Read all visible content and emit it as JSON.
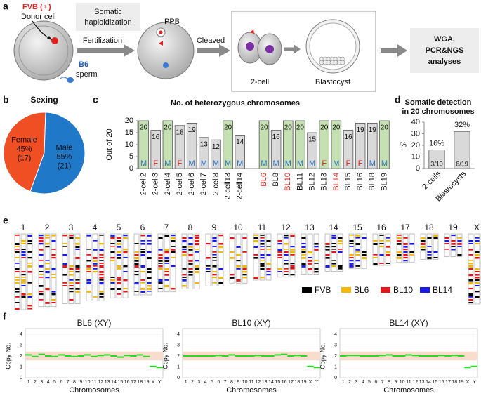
{
  "panel_labels": [
    "a",
    "b",
    "c",
    "d",
    "e",
    "f"
  ],
  "diagram": {
    "donor": "FVB (♀)",
    "donor_cell": "Donor cell",
    "method": [
      "Somatic",
      "haploidization"
    ],
    "fertilization": "Fertilization",
    "sperm_strain": "B6",
    "sperm": "sperm",
    "ppb": "PPB",
    "cleaved": "Cleaved",
    "two_cell": "2-cell",
    "blastocyst": "Blastocyst",
    "analyses": [
      "WGA,",
      "PCR&NGS",
      "analyses"
    ]
  },
  "chart_data": [
    {
      "type": "pie",
      "title": "Sexing",
      "categories": [
        "Female",
        "Male"
      ],
      "values": [
        45,
        55
      ],
      "value_labels": [
        "45%",
        "55%"
      ],
      "counts": [
        "(17)",
        "(21)"
      ],
      "colors": [
        "#f04e23",
        "#1f78c8"
      ]
    },
    {
      "type": "bar",
      "title": "No. of heterozygous chromosomes",
      "ylabel": "Out of 20",
      "categories": [
        "2-cell2",
        "2-cell3",
        "2-cell4",
        "2-cell5",
        "2-cell6",
        "2-cell7",
        "2-cell8",
        "2-cell13",
        "2-cell14",
        null,
        "BL6",
        "BL8",
        "BL10",
        "BL11",
        "BL12",
        "BL13",
        "BL14",
        "BL15",
        "BL16",
        "BL18",
        "BL19"
      ],
      "values": [
        20,
        16,
        20,
        18,
        19,
        13,
        12,
        20,
        14,
        null,
        20,
        16,
        20,
        20,
        15,
        20,
        20,
        16,
        19,
        19,
        20
      ],
      "colors": [
        "#c5e0b3",
        "#d9d9d9",
        "#c5e0b3",
        "#d9d9d9",
        "#d9d9d9",
        "#d9d9d9",
        "#d9d9d9",
        "#c5e0b3",
        "#d9d9d9",
        null,
        "#c5e0b3",
        "#d9d9d9",
        "#c5e0b3",
        "#c5e0b3",
        "#d9d9d9",
        "#c5e0b3",
        "#c5e0b3",
        "#d9d9d9",
        "#d9d9d9",
        "#d9d9d9",
        "#c5e0b3"
      ],
      "label_colors": [
        "#111",
        "#111",
        "#111",
        "#111",
        "#111",
        "#111",
        "#111",
        "#111",
        "#111",
        null,
        "#e0201b",
        "#111",
        "#e0201b",
        "#111",
        "#111",
        "#111",
        "#e0201b",
        "#111",
        "#111",
        "#111",
        "#111"
      ],
      "sex": [
        "M",
        "F",
        "M",
        "F",
        "M",
        "M",
        "M",
        "M",
        "M",
        null,
        "M",
        "M",
        "M",
        "M",
        "M",
        "F",
        "M",
        "F",
        "F",
        "M",
        "M"
      ],
      "sex_colors": {
        "M": "#2f6fbf",
        "F": "#e0201b"
      },
      "ylim": [
        0,
        20
      ],
      "yticks": [
        0,
        5,
        10,
        15,
        20
      ]
    },
    {
      "type": "bar",
      "title": [
        "Somatic detection",
        "in 20 chromosomes"
      ],
      "ylabel": "%",
      "categories": [
        "2-cells",
        "Blastocysts"
      ],
      "values": [
        16,
        32
      ],
      "value_labels": [
        "16%",
        "32%"
      ],
      "inner_labels": [
        "3/19",
        "6/19"
      ],
      "color": "#d9d9d9",
      "ylim": [
        0,
        40
      ],
      "yticks": [
        0,
        10,
        20,
        30,
        40
      ]
    },
    {
      "type": "step",
      "title": "BL6 (XY)",
      "ylabel": "Copy No.",
      "xlabel": "Chromosomes",
      "categories": [
        "1",
        "2",
        "3",
        "4",
        "5",
        "6",
        "7",
        "8",
        "9",
        "10",
        "11",
        "12",
        "13",
        "14",
        "15",
        "16",
        "17",
        "18",
        "19",
        "X",
        "Y"
      ],
      "values": [
        2.1,
        1.95,
        2.15,
        2.0,
        1.95,
        2.1,
        2.0,
        1.95,
        2.0,
        2.1,
        1.95,
        2.05,
        2.1,
        2.0,
        1.9,
        2.05,
        2.0,
        2.1,
        1.95,
        1.05,
        0.95
      ],
      "band": [
        1.6,
        2.4
      ],
      "color": "#22dd22",
      "ylim": [
        0,
        4
      ],
      "yticks": [
        0,
        1,
        2,
        3,
        4
      ]
    },
    {
      "type": "step",
      "title": "BL10 (XY)",
      "ylabel": "Copy No.",
      "xlabel": "Chromosomes",
      "categories": [
        "1",
        "2",
        "3",
        "4",
        "5",
        "6",
        "7",
        "8",
        "9",
        "10",
        "11",
        "12",
        "13",
        "14",
        "15",
        "16",
        "17",
        "18",
        "19",
        "X",
        "Y"
      ],
      "values": [
        2.0,
        2.0,
        2.0,
        2.0,
        2.0,
        2.05,
        2.0,
        2.1,
        2.0,
        2.0,
        2.0,
        2.05,
        2.0,
        2.0,
        2.1,
        2.15,
        2.0,
        2.05,
        2.0,
        1.05,
        0.95
      ],
      "band": [
        1.6,
        2.4
      ],
      "color": "#22dd22",
      "ylim": [
        0,
        4
      ],
      "yticks": [
        0,
        1,
        2,
        3,
        4
      ]
    },
    {
      "type": "step",
      "title": "BL14 (XY)",
      "ylabel": "Copy No.",
      "xlabel": "Chromosomes",
      "categories": [
        "1",
        "2",
        "3",
        "4",
        "5",
        "6",
        "7",
        "8",
        "9",
        "10",
        "11",
        "12",
        "13",
        "14",
        "15",
        "16",
        "17",
        "18",
        "19",
        "X",
        "Y"
      ],
      "values": [
        2.0,
        2.05,
        2.05,
        2.0,
        2.0,
        2.0,
        2.05,
        2.1,
        2.0,
        2.0,
        2.1,
        2.05,
        2.0,
        2.0,
        2.0,
        2.05,
        2.0,
        2.05,
        2.0,
        0.95,
        1.05
      ],
      "band": [
        1.6,
        2.4
      ],
      "color": "#22dd22",
      "ylim": [
        0,
        4
      ],
      "yticks": [
        0,
        1,
        2,
        3,
        4
      ]
    }
  ],
  "karyotype": {
    "chromosomes": [
      "1",
      "2",
      "3",
      "4",
      "5",
      "6",
      "7",
      "8",
      "9",
      "10",
      "11",
      "12",
      "13",
      "14",
      "15",
      "16",
      "17",
      "18",
      "19",
      "X"
    ],
    "legend": [
      {
        "name": "FVB",
        "color": "#000000"
      },
      {
        "name": "BL6",
        "color": "#f5b800"
      },
      {
        "name": "BL10",
        "color": "#e8141b"
      },
      {
        "name": "BL14",
        "color": "#1a1ae6"
      }
    ]
  }
}
